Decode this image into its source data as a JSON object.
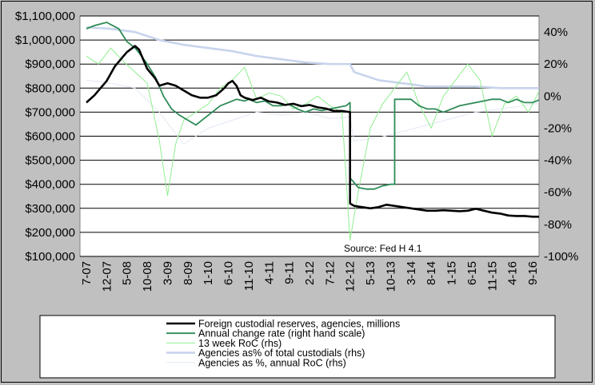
{
  "chart_data": {
    "type": "line",
    "title": "",
    "xlabel": "",
    "ylabel": "",
    "ylim": [
      100000,
      1100000
    ],
    "y2lim": [
      -100,
      50
    ],
    "y_ticks": [
      "$100,000",
      "$200,000",
      "$300,000",
      "$400,000",
      "$500,000",
      "$600,000",
      "$700,000",
      "$800,000",
      "$900,000",
      "$1,000,000",
      "$1,100,000"
    ],
    "y2_ticks": [
      "-100%",
      "-80%",
      "-60%",
      "-40%",
      "-20%",
      "0%",
      "20%",
      "40%"
    ],
    "x_ticks": [
      "7-07",
      "12-07",
      "5-08",
      "10-08",
      "3-09",
      "8-09",
      "1-10",
      "6-10",
      "11-10",
      "4-11",
      "9-11",
      "2-12",
      "7-12",
      "12-12",
      "5-13",
      "10-13",
      "3-14",
      "8-14",
      "1-15",
      "6-15",
      "11-15",
      "4-16",
      "9-16"
    ],
    "grid": true,
    "legend_position": "bottom",
    "source_note": "Source: Fed H 4.1",
    "colors": {
      "plot_bg": "#ffffff",
      "frame_bg": "#c0c0c0",
      "reserves": "#000000",
      "annual": "#2e8b57",
      "roc13": "#90ee90",
      "share": "#c8d4ec",
      "share_roc": "#e2e8f4"
    },
    "series": [
      {
        "name": "Foreign custodial reserves, agencies, millions",
        "axis": "left",
        "x": [
          "2007-07",
          "2007-09",
          "2007-12",
          "2008-02",
          "2008-05",
          "2008-07",
          "2008-08",
          "2008-09",
          "2008-10",
          "2008-12",
          "2009-01",
          "2009-03",
          "2009-05",
          "2009-07",
          "2009-09",
          "2009-11",
          "2010-01",
          "2010-03",
          "2010-05",
          "2010-06",
          "2010-07",
          "2010-08",
          "2010-09",
          "2010-10",
          "2010-11",
          "2010-12",
          "2011-02",
          "2011-04",
          "2011-06",
          "2011-08",
          "2011-10",
          "2011-12",
          "2012-02",
          "2012-04",
          "2012-06",
          "2012-08",
          "2012-10",
          "2012-12",
          "2012-12",
          "2013-01",
          "2013-03",
          "2013-05",
          "2013-07",
          "2013-09",
          "2013-11",
          "2014-01",
          "2014-03",
          "2014-05",
          "2014-07",
          "2014-09",
          "2014-11",
          "2015-01",
          "2015-03",
          "2015-05",
          "2015-07",
          "2015-09",
          "2015-11",
          "2016-01",
          "2016-03",
          "2016-05",
          "2016-07",
          "2016-09",
          "2016-11"
        ],
        "values": [
          740000,
          770000,
          830000,
          890000,
          950000,
          975000,
          960000,
          920000,
          880000,
          840000,
          810000,
          820000,
          810000,
          790000,
          770000,
          760000,
          760000,
          770000,
          800000,
          820000,
          830000,
          810000,
          770000,
          760000,
          755000,
          750000,
          760000,
          745000,
          740000,
          730000,
          735000,
          725000,
          730000,
          720000,
          715000,
          705000,
          705000,
          700000,
          320000,
          310000,
          305000,
          300000,
          305000,
          315000,
          310000,
          305000,
          300000,
          295000,
          290000,
          290000,
          292000,
          290000,
          288000,
          290000,
          298000,
          290000,
          282000,
          278000,
          270000,
          268000,
          268000,
          265000,
          265000
        ]
      },
      {
        "name": "Annual change rate (right hand scale)",
        "axis": "right",
        "x": [
          "2007-07",
          "2007-09",
          "2007-12",
          "2008-03",
          "2008-05",
          "2008-07",
          "2008-08",
          "2008-10",
          "2008-12",
          "2009-02",
          "2009-04",
          "2009-06",
          "2009-08",
          "2009-10",
          "2009-12",
          "2010-02",
          "2010-04",
          "2010-06",
          "2010-08",
          "2010-10",
          "2010-11",
          "2011-01",
          "2011-03",
          "2011-05",
          "2011-07",
          "2011-09",
          "2011-11",
          "2012-01",
          "2012-03",
          "2012-05",
          "2012-07",
          "2012-09",
          "2012-11",
          "2012-12",
          "2012-12",
          "2013-02",
          "2013-04",
          "2013-06",
          "2013-08",
          "2013-10",
          "2013-11",
          "2013-11",
          "2014-01",
          "2014-03",
          "2014-05",
          "2014-07",
          "2014-09",
          "2014-11",
          "2015-01",
          "2015-03",
          "2015-05",
          "2015-07",
          "2015-09",
          "2015-11",
          "2016-01",
          "2016-03",
          "2016-05",
          "2016-07",
          "2016-09",
          "2016-11"
        ],
        "values": [
          42,
          44,
          46,
          42,
          34,
          30,
          27,
          20,
          12,
          0,
          -8,
          -12,
          -15,
          -18,
          -14,
          -10,
          -6,
          -4,
          -2,
          -3,
          -2,
          -4,
          -3,
          -6,
          -6,
          -5,
          -8,
          -10,
          -8,
          -9,
          -8,
          -7,
          -6,
          -4,
          -51,
          -57,
          -58,
          -58,
          -56,
          -55,
          -55,
          -2,
          -2,
          -2,
          -6,
          -8,
          -8,
          -10,
          -8,
          -6,
          -5,
          -4,
          -3,
          -2,
          -2,
          -4,
          -2,
          -4,
          -4,
          -2
        ]
      },
      {
        "name": "13 week RoC (rhs)",
        "axis": "right",
        "x": [
          "2007-07",
          "2007-10",
          "2008-01",
          "2008-04",
          "2008-07",
          "2008-10",
          "2009-01",
          "2009-03",
          "2009-05",
          "2009-07",
          "2009-10",
          "2010-01",
          "2010-04",
          "2010-07",
          "2010-10",
          "2011-01",
          "2011-04",
          "2011-07",
          "2011-10",
          "2012-01",
          "2012-04",
          "2012-07",
          "2012-10",
          "2012-12",
          "2013-02",
          "2013-05",
          "2013-08",
          "2013-11",
          "2014-02",
          "2014-05",
          "2014-08",
          "2014-11",
          "2015-02",
          "2015-05",
          "2015-08",
          "2015-11",
          "2016-02",
          "2016-05",
          "2016-08",
          "2016-11"
        ],
        "values": [
          25,
          20,
          30,
          22,
          15,
          8,
          -28,
          -62,
          -30,
          -15,
          -10,
          -5,
          5,
          10,
          18,
          -2,
          2,
          0,
          -8,
          -5,
          0,
          -6,
          -10,
          -90,
          -60,
          -20,
          -5,
          5,
          15,
          -5,
          -20,
          0,
          10,
          20,
          10,
          -25,
          -5,
          0,
          -10,
          5
        ]
      },
      {
        "name": "Agencies as% of total custodials (rhs)",
        "axis": "right",
        "x": [
          "2007-07",
          "2008-01",
          "2008-07",
          "2009-01",
          "2009-07",
          "2010-01",
          "2010-07",
          "2011-01",
          "2011-07",
          "2012-01",
          "2012-07",
          "2012-12",
          "2013-01",
          "2013-07",
          "2014-01",
          "2014-07",
          "2015-01",
          "2015-07",
          "2016-01",
          "2016-07",
          "2016-11"
        ],
        "values": [
          43,
          42,
          40,
          35,
          32,
          30,
          28,
          25,
          23,
          21,
          20,
          20,
          15,
          10,
          8,
          6,
          6,
          6,
          5,
          5,
          5
        ]
      },
      {
        "name": "Agencies as %, annual RoC (rhs)",
        "axis": "right",
        "x": [
          "2007-07",
          "2008-01",
          "2008-07",
          "2009-01",
          "2009-07",
          "2010-01",
          "2010-07",
          "2011-01",
          "2011-07",
          "2012-01",
          "2012-07",
          "2012-12",
          "2013-01",
          "2013-07",
          "2014-01",
          "2014-07",
          "2015-01",
          "2015-07",
          "2016-01",
          "2016-07",
          "2016-11"
        ],
        "values": [
          10,
          8,
          5,
          -10,
          -30,
          -20,
          -15,
          -10,
          -12,
          -10,
          -14,
          -13,
          -28,
          -26,
          -22,
          -18,
          -14,
          -10,
          -8,
          -6,
          -4
        ]
      }
    ]
  }
}
